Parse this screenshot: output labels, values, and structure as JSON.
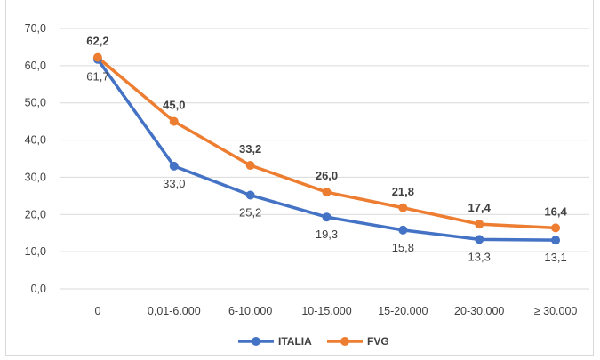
{
  "chart_data": {
    "type": "line",
    "title": "",
    "categories": [
      "0",
      "0,01-6.000",
      "6-10.000",
      "10-15.000",
      "15-20.000",
      "20-30.000",
      "≥ 30.000"
    ],
    "ylim": [
      0,
      70
    ],
    "yticks": [
      "0,0",
      "10,0",
      "20,0",
      "30,0",
      "40,0",
      "50,0",
      "60,0",
      "70,0"
    ],
    "grid": true,
    "legend_position": "bottom",
    "series": [
      {
        "name": "ITALIA",
        "color": "#4472c4",
        "values": [
          61.7,
          33.0,
          25.2,
          19.3,
          15.8,
          13.3,
          13.1
        ],
        "labels": [
          "61,7",
          "33,0",
          "25,2",
          "19,3",
          "15,8",
          "13,3",
          "13,1"
        ]
      },
      {
        "name": "FVG",
        "color": "#ed7d31",
        "values": [
          62.2,
          45.0,
          33.2,
          26.0,
          21.8,
          17.4,
          16.4
        ],
        "labels": [
          "62,2",
          "45,0",
          "33,2",
          "26,0",
          "21,8",
          "17,4",
          "16,4"
        ]
      }
    ]
  }
}
